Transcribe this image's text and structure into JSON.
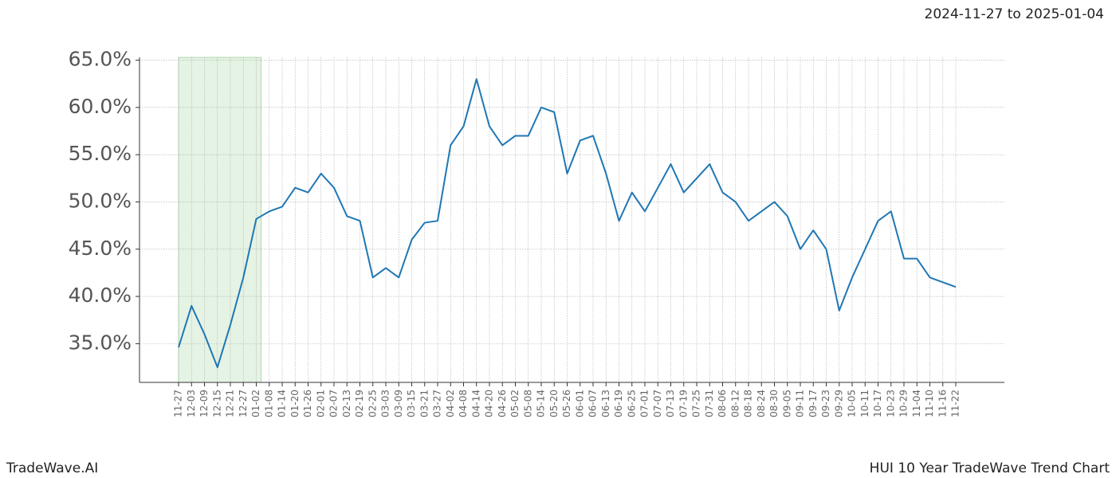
{
  "chart_data": {
    "type": "line",
    "title": "HUI 10 Year TradeWave Trend Chart",
    "subtitle": "2024-11-27 to 2025-01-04",
    "brand": "TradeWave.AI",
    "categories": [
      "11-27",
      "12-03",
      "12-09",
      "12-15",
      "12-21",
      "12-27",
      "01-02",
      "01-08",
      "01-14",
      "01-20",
      "01-26",
      "02-01",
      "02-07",
      "02-13",
      "02-19",
      "02-25",
      "03-03",
      "03-09",
      "03-15",
      "03-21",
      "03-27",
      "04-02",
      "04-08",
      "04-14",
      "04-20",
      "04-26",
      "05-02",
      "05-08",
      "05-14",
      "05-20",
      "05-26",
      "06-01",
      "06-07",
      "06-13",
      "06-19",
      "06-25",
      "07-01",
      "07-07",
      "07-13",
      "07-19",
      "07-25",
      "07-31",
      "08-06",
      "08-12",
      "08-18",
      "08-24",
      "08-30",
      "09-05",
      "09-11",
      "09-17",
      "09-23",
      "09-29",
      "10-05",
      "10-11",
      "10-17",
      "10-23",
      "10-29",
      "11-04",
      "11-10",
      "11-16",
      "11-22"
    ],
    "series": [
      {
        "name": "HUI",
        "color": "#1f77b4",
        "values": [
          34.6,
          39,
          36,
          32.5,
          37,
          42,
          48.2,
          49,
          49.5,
          51.5,
          51,
          53,
          51.5,
          48.5,
          48,
          42,
          43,
          42,
          46,
          47.8,
          48,
          56,
          58,
          63,
          58,
          56,
          57,
          57,
          60,
          59.5,
          53,
          56.5,
          57,
          53,
          48,
          51,
          49,
          51.5,
          54,
          51,
          52.5,
          54,
          51,
          50,
          48,
          49,
          50,
          48.5,
          45,
          47,
          45,
          38.5,
          42,
          45,
          48,
          49,
          44,
          44,
          42,
          41.5,
          41
        ]
      }
    ],
    "highlight": {
      "start": "11-27",
      "end": "01-02",
      "color": "#2ca02c"
    },
    "ylim": [
      30.9,
      65.3
    ],
    "yticks": [
      {
        "value": 35,
        "label": "35.0%"
      },
      {
        "value": 40,
        "label": "40.0%"
      },
      {
        "value": 45,
        "label": "45.0%"
      },
      {
        "value": 50,
        "label": "50.0%"
      },
      {
        "value": 55,
        "label": "55.0%"
      },
      {
        "value": 60,
        "label": "60.0%"
      },
      {
        "value": 65,
        "label": "65.0%"
      }
    ],
    "grid": true
  }
}
